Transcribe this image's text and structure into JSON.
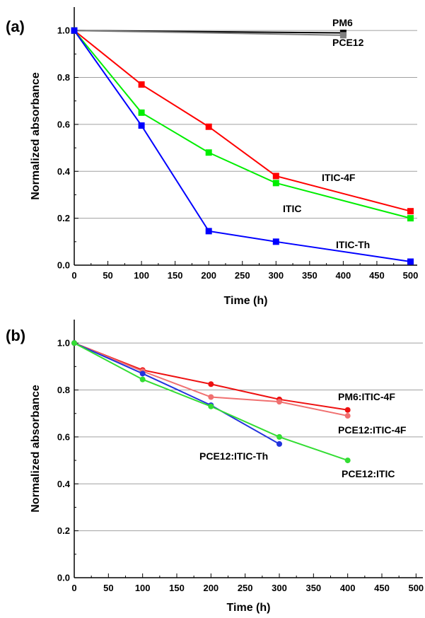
{
  "chart_data": [
    {
      "type": "line",
      "panel_label": "(a)",
      "xlabel": "Time (h)",
      "ylabel": "Normalized absorbance",
      "xlim": [
        0,
        510
      ],
      "ylim": [
        0,
        1.1
      ],
      "xticks": [
        0,
        50,
        100,
        150,
        200,
        250,
        300,
        350,
        400,
        450,
        500
      ],
      "yticks": [
        0.0,
        0.2,
        0.4,
        0.6,
        0.8,
        1.0
      ],
      "ytick_labels": [
        "0.0",
        "0.2",
        "0.4",
        "0.6",
        "0.8",
        "1.0"
      ],
      "grid": "horizontal",
      "series": [
        {
          "name": "PM6",
          "color": "#000000",
          "x": [
            0,
            400
          ],
          "y": [
            1.0,
            0.99
          ]
        },
        {
          "name": "PCE12",
          "color": "#7f7f7f",
          "x": [
            0,
            400
          ],
          "y": [
            1.0,
            0.98
          ]
        },
        {
          "name": "ITIC-4F",
          "color": "#ff0000",
          "x": [
            0,
            100,
            200,
            300,
            500
          ],
          "y": [
            1.0,
            0.77,
            0.59,
            0.38,
            0.23
          ]
        },
        {
          "name": "ITIC",
          "color": "#00ee00",
          "x": [
            0,
            100,
            200,
            300,
            500
          ],
          "y": [
            1.0,
            0.65,
            0.48,
            0.35,
            0.2
          ]
        },
        {
          "name": "ITIC-Th",
          "color": "#0000ff",
          "x": [
            0,
            100,
            200,
            300,
            500
          ],
          "y": [
            1.0,
            0.595,
            0.145,
            0.1,
            0.015
          ]
        }
      ]
    },
    {
      "type": "line",
      "panel_label": "(b)",
      "xlabel": "Time (h)",
      "ylabel": "Normalized absorbance",
      "xlim": [
        0,
        510
      ],
      "ylim": [
        0,
        1.1
      ],
      "xticks": [
        0,
        50,
        100,
        150,
        200,
        250,
        300,
        350,
        400,
        450,
        500
      ],
      "yticks": [
        0.0,
        0.2,
        0.4,
        0.6,
        0.8,
        1.0
      ],
      "ytick_labels": [
        "0.0",
        "0.2",
        "0.4",
        "0.6",
        "0.8",
        "1.0"
      ],
      "grid": "horizontal",
      "series": [
        {
          "name": "PM6:ITIC-4F",
          "color": "#ee1111",
          "x": [
            0,
            100,
            200,
            300,
            400
          ],
          "y": [
            1.0,
            0.885,
            0.825,
            0.76,
            0.715
          ]
        },
        {
          "name": "PCE12:ITIC-4F",
          "color": "#f07070",
          "x": [
            0,
            100,
            200,
            300,
            400
          ],
          "y": [
            1.0,
            0.88,
            0.77,
            0.75,
            0.69
          ]
        },
        {
          "name": "PCE12:ITIC-Th",
          "color": "#2233dd",
          "x": [
            0,
            100,
            200,
            300
          ],
          "y": [
            1.0,
            0.87,
            0.735,
            0.57
          ]
        },
        {
          "name": "PCE12:ITIC",
          "color": "#33dd33",
          "x": [
            0,
            100,
            200,
            300,
            400
          ],
          "y": [
            1.0,
            0.845,
            0.73,
            0.6,
            0.5
          ]
        }
      ]
    }
  ]
}
